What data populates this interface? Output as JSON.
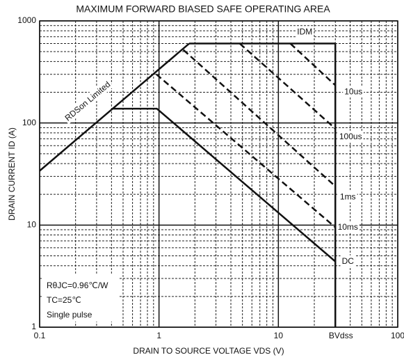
{
  "chart_data": {
    "type": "line",
    "title": "MAXIMUM FORWARD BIASED SAFE OPERATING AREA",
    "xlabel": "DRAIN TO SOURCE VOLTAGE  VDS  (V)",
    "ylabel": "DRAIN CURRENT  ID  (A)",
    "xscale": "log",
    "yscale": "log",
    "grid": true,
    "xlim": [
      0.1,
      100
    ],
    "ylim": [
      1,
      1000
    ],
    "xticks": [
      0.1,
      1,
      10,
      100
    ],
    "yticks": [
      1,
      10,
      100,
      1000
    ],
    "xminorticks": [
      0.2,
      0.3,
      0.4,
      0.5,
      0.6,
      0.7,
      0.8,
      0.9,
      2,
      3,
      4,
      5,
      6,
      7,
      8,
      9,
      20,
      30,
      40,
      50,
      60,
      70,
      80,
      90
    ],
    "yminorticks": [
      2,
      3,
      4,
      5,
      6,
      7,
      8,
      9,
      20,
      30,
      40,
      50,
      60,
      70,
      80,
      90,
      200,
      300,
      400,
      500,
      600,
      700,
      800,
      900
    ],
    "series": [
      {
        "name": "RDSon Limited",
        "color": "#111111",
        "dashed": false,
        "x": [
          0.1,
          1.79
        ],
        "values": [
          34,
          600
        ]
      },
      {
        "name": "IDM",
        "color": "#111111",
        "dashed": false,
        "x": [
          1.79,
          30
        ],
        "values": [
          600,
          600
        ]
      },
      {
        "name": "BVdss",
        "color": "#111111",
        "dashed": false,
        "x": [
          30,
          30
        ],
        "values": [
          600,
          1
        ]
      },
      {
        "name": "10us",
        "color": "#111111",
        "dashed": true,
        "x": [
          12.6,
          30
        ],
        "values": [
          600,
          234
        ]
      },
      {
        "name": "100us",
        "color": "#111111",
        "dashed": true,
        "x": [
          4.75,
          30
        ],
        "values": [
          600,
          88
        ]
      },
      {
        "name": "1ms",
        "color": "#111111",
        "dashed": true,
        "x": [
          1.6,
          30
        ],
        "values": [
          520,
          24
        ]
      },
      {
        "name": "10ms",
        "color": "#111111",
        "dashed": true,
        "x": [
          0.95,
          30
        ],
        "values": [
          300,
          9.5
        ]
      },
      {
        "name": "DC",
        "color": "#111111",
        "dashed": false,
        "x": [
          0.41,
          0.96,
          30
        ],
        "values": [
          138,
          138,
          4.4
        ]
      }
    ],
    "notes": [
      "RθJC=0.96℃/W",
      "TC=25℃",
      "Single pulse"
    ]
  }
}
